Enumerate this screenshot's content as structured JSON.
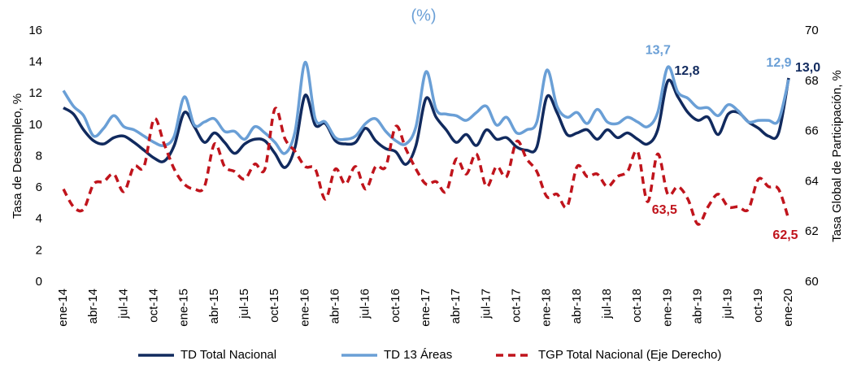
{
  "chart_data": {
    "type": "line",
    "title": "(%)",
    "y_label": "Tasa de Desempleo, %",
    "y2_label": "Tasa Global de Participación, %",
    "categories": [
      "ene-14",
      null,
      null,
      "abr-14",
      null,
      null,
      "jul-14",
      null,
      null,
      "oct-14",
      null,
      null,
      "ene-15",
      null,
      null,
      "abr-15",
      null,
      null,
      "jul-15",
      null,
      null,
      "oct-15",
      null,
      null,
      "ene-16",
      null,
      null,
      "abr-16",
      null,
      null,
      "jul-16",
      null,
      null,
      "oct-16",
      null,
      null,
      "ene-17",
      null,
      null,
      "abr-17",
      null,
      null,
      "jul-17",
      null,
      null,
      "oct-17",
      null,
      null,
      "ene-18",
      null,
      null,
      "abr-18",
      null,
      null,
      "jul-18",
      null,
      null,
      "oct-18",
      null,
      null,
      "ene-19",
      null,
      null,
      "abr-19",
      null,
      null,
      "jul-19",
      null,
      null,
      "oct-19",
      null,
      null,
      "ene-20"
    ],
    "series": [
      {
        "name": "TD Total Nacional",
        "color": "#112a5e",
        "style": "solid",
        "values": [
          11.1,
          10.7,
          9.7,
          9.0,
          8.8,
          9.2,
          9.3,
          8.9,
          8.4,
          7.9,
          7.7,
          8.7,
          10.8,
          9.9,
          8.9,
          9.5,
          8.9,
          8.2,
          8.8,
          9.1,
          9.0,
          8.2,
          7.3,
          8.6,
          11.9,
          10.0,
          10.1,
          9.0,
          8.8,
          8.9,
          9.8,
          9.0,
          8.5,
          8.3,
          7.5,
          8.7,
          11.7,
          10.5,
          9.7,
          8.9,
          9.4,
          8.7,
          9.7,
          9.1,
          9.2,
          8.6,
          8.4,
          8.6,
          11.8,
          10.8,
          9.4,
          9.5,
          9.7,
          9.1,
          9.7,
          9.2,
          9.5,
          9.1,
          8.8,
          9.7,
          12.8,
          11.8,
          10.8,
          10.3,
          10.5,
          9.4,
          10.7,
          10.8,
          10.2,
          9.8,
          9.3,
          9.5,
          13.0
        ],
        "value_labels": [
          null,
          null,
          null,
          null,
          null,
          null,
          null,
          null,
          null,
          null,
          null,
          null,
          null,
          null,
          null,
          null,
          null,
          null,
          null,
          null,
          null,
          null,
          null,
          null,
          null,
          null,
          null,
          null,
          null,
          null,
          null,
          null,
          null,
          null,
          null,
          null,
          null,
          null,
          null,
          null,
          null,
          null,
          null,
          null,
          null,
          null,
          null,
          null,
          null,
          null,
          null,
          null,
          null,
          null,
          null,
          null,
          null,
          null,
          null,
          null,
          "12,8",
          null,
          null,
          null,
          null,
          null,
          null,
          null,
          null,
          null,
          null,
          null,
          "13,0"
        ]
      },
      {
        "name": "TD 13 Áreas",
        "color": "#6a9fd6",
        "style": "solid",
        "values": [
          12.2,
          11.2,
          10.6,
          9.3,
          9.8,
          10.6,
          9.9,
          9.7,
          9.3,
          8.9,
          8.7,
          9.3,
          11.8,
          10.0,
          10.2,
          10.4,
          9.6,
          9.6,
          9.1,
          9.9,
          9.5,
          8.9,
          8.2,
          9.6,
          14.0,
          10.4,
          10.2,
          9.2,
          9.1,
          9.3,
          10.1,
          10.4,
          9.6,
          9.0,
          8.8,
          9.9,
          13.4,
          11.0,
          10.7,
          10.6,
          10.3,
          10.8,
          11.2,
          10.0,
          10.5,
          9.5,
          9.7,
          10.2,
          13.5,
          11.2,
          10.5,
          10.8,
          10.1,
          11.0,
          10.2,
          10.1,
          10.5,
          10.2,
          9.9,
          10.8,
          13.7,
          12.1,
          11.7,
          11.1,
          11.1,
          10.6,
          11.3,
          10.9,
          10.2,
          10.3,
          10.3,
          10.3,
          12.9
        ],
        "value_labels": [
          null,
          null,
          null,
          null,
          null,
          null,
          null,
          null,
          null,
          null,
          null,
          null,
          null,
          null,
          null,
          null,
          null,
          null,
          null,
          null,
          null,
          null,
          null,
          null,
          null,
          null,
          null,
          null,
          null,
          null,
          null,
          null,
          null,
          null,
          null,
          null,
          null,
          null,
          null,
          null,
          null,
          null,
          null,
          null,
          null,
          null,
          null,
          null,
          null,
          null,
          null,
          null,
          null,
          null,
          null,
          null,
          null,
          null,
          null,
          null,
          "13,7",
          null,
          null,
          null,
          null,
          null,
          null,
          null,
          null,
          null,
          null,
          null,
          "12,9"
        ]
      },
      {
        "name": "TGP Total Nacional (Eje Derecho)",
        "color": "#c0141c",
        "style": "dashed",
        "axis": "y2",
        "values": [
          63.7,
          63.0,
          62.9,
          63.9,
          64.0,
          64.3,
          63.6,
          64.6,
          64.6,
          66.5,
          65.5,
          64.5,
          63.9,
          63.7,
          63.8,
          65.5,
          64.6,
          64.4,
          64.1,
          64.7,
          64.5,
          66.9,
          65.7,
          65.2,
          64.6,
          64.5,
          63.3,
          64.5,
          63.9,
          64.6,
          63.7,
          64.6,
          64.6,
          66.2,
          65.3,
          64.5,
          63.9,
          64.0,
          63.6,
          64.9,
          64.3,
          65.1,
          63.8,
          64.6,
          64.2,
          65.6,
          64.9,
          64.4,
          63.4,
          63.5,
          63.0,
          64.6,
          64.2,
          64.3,
          63.8,
          64.2,
          64.4,
          65.2,
          63.2,
          65.1,
          63.5,
          63.8,
          63.3,
          62.3,
          63.0,
          63.5,
          63.0,
          63.0,
          62.9,
          64.1,
          63.8,
          63.7,
          62.5
        ],
        "value_labels": [
          null,
          null,
          null,
          null,
          null,
          null,
          null,
          null,
          null,
          null,
          null,
          null,
          null,
          null,
          null,
          null,
          null,
          null,
          null,
          null,
          null,
          null,
          null,
          null,
          null,
          null,
          null,
          null,
          null,
          null,
          null,
          null,
          null,
          null,
          null,
          null,
          null,
          null,
          null,
          null,
          null,
          null,
          null,
          null,
          null,
          null,
          null,
          null,
          null,
          null,
          null,
          null,
          null,
          null,
          null,
          null,
          null,
          null,
          null,
          null,
          "63,5",
          null,
          null,
          null,
          null,
          null,
          null,
          null,
          null,
          null,
          null,
          null,
          "62,5"
        ]
      }
    ],
    "ylim": [
      0,
      16
    ],
    "yticks": [
      0,
      2,
      4,
      6,
      8,
      10,
      12,
      14,
      16
    ],
    "y2lim": [
      60,
      70
    ],
    "y2ticks": [
      60,
      62,
      64,
      66,
      68,
      70
    ],
    "grid": false,
    "legend": "bottom"
  }
}
